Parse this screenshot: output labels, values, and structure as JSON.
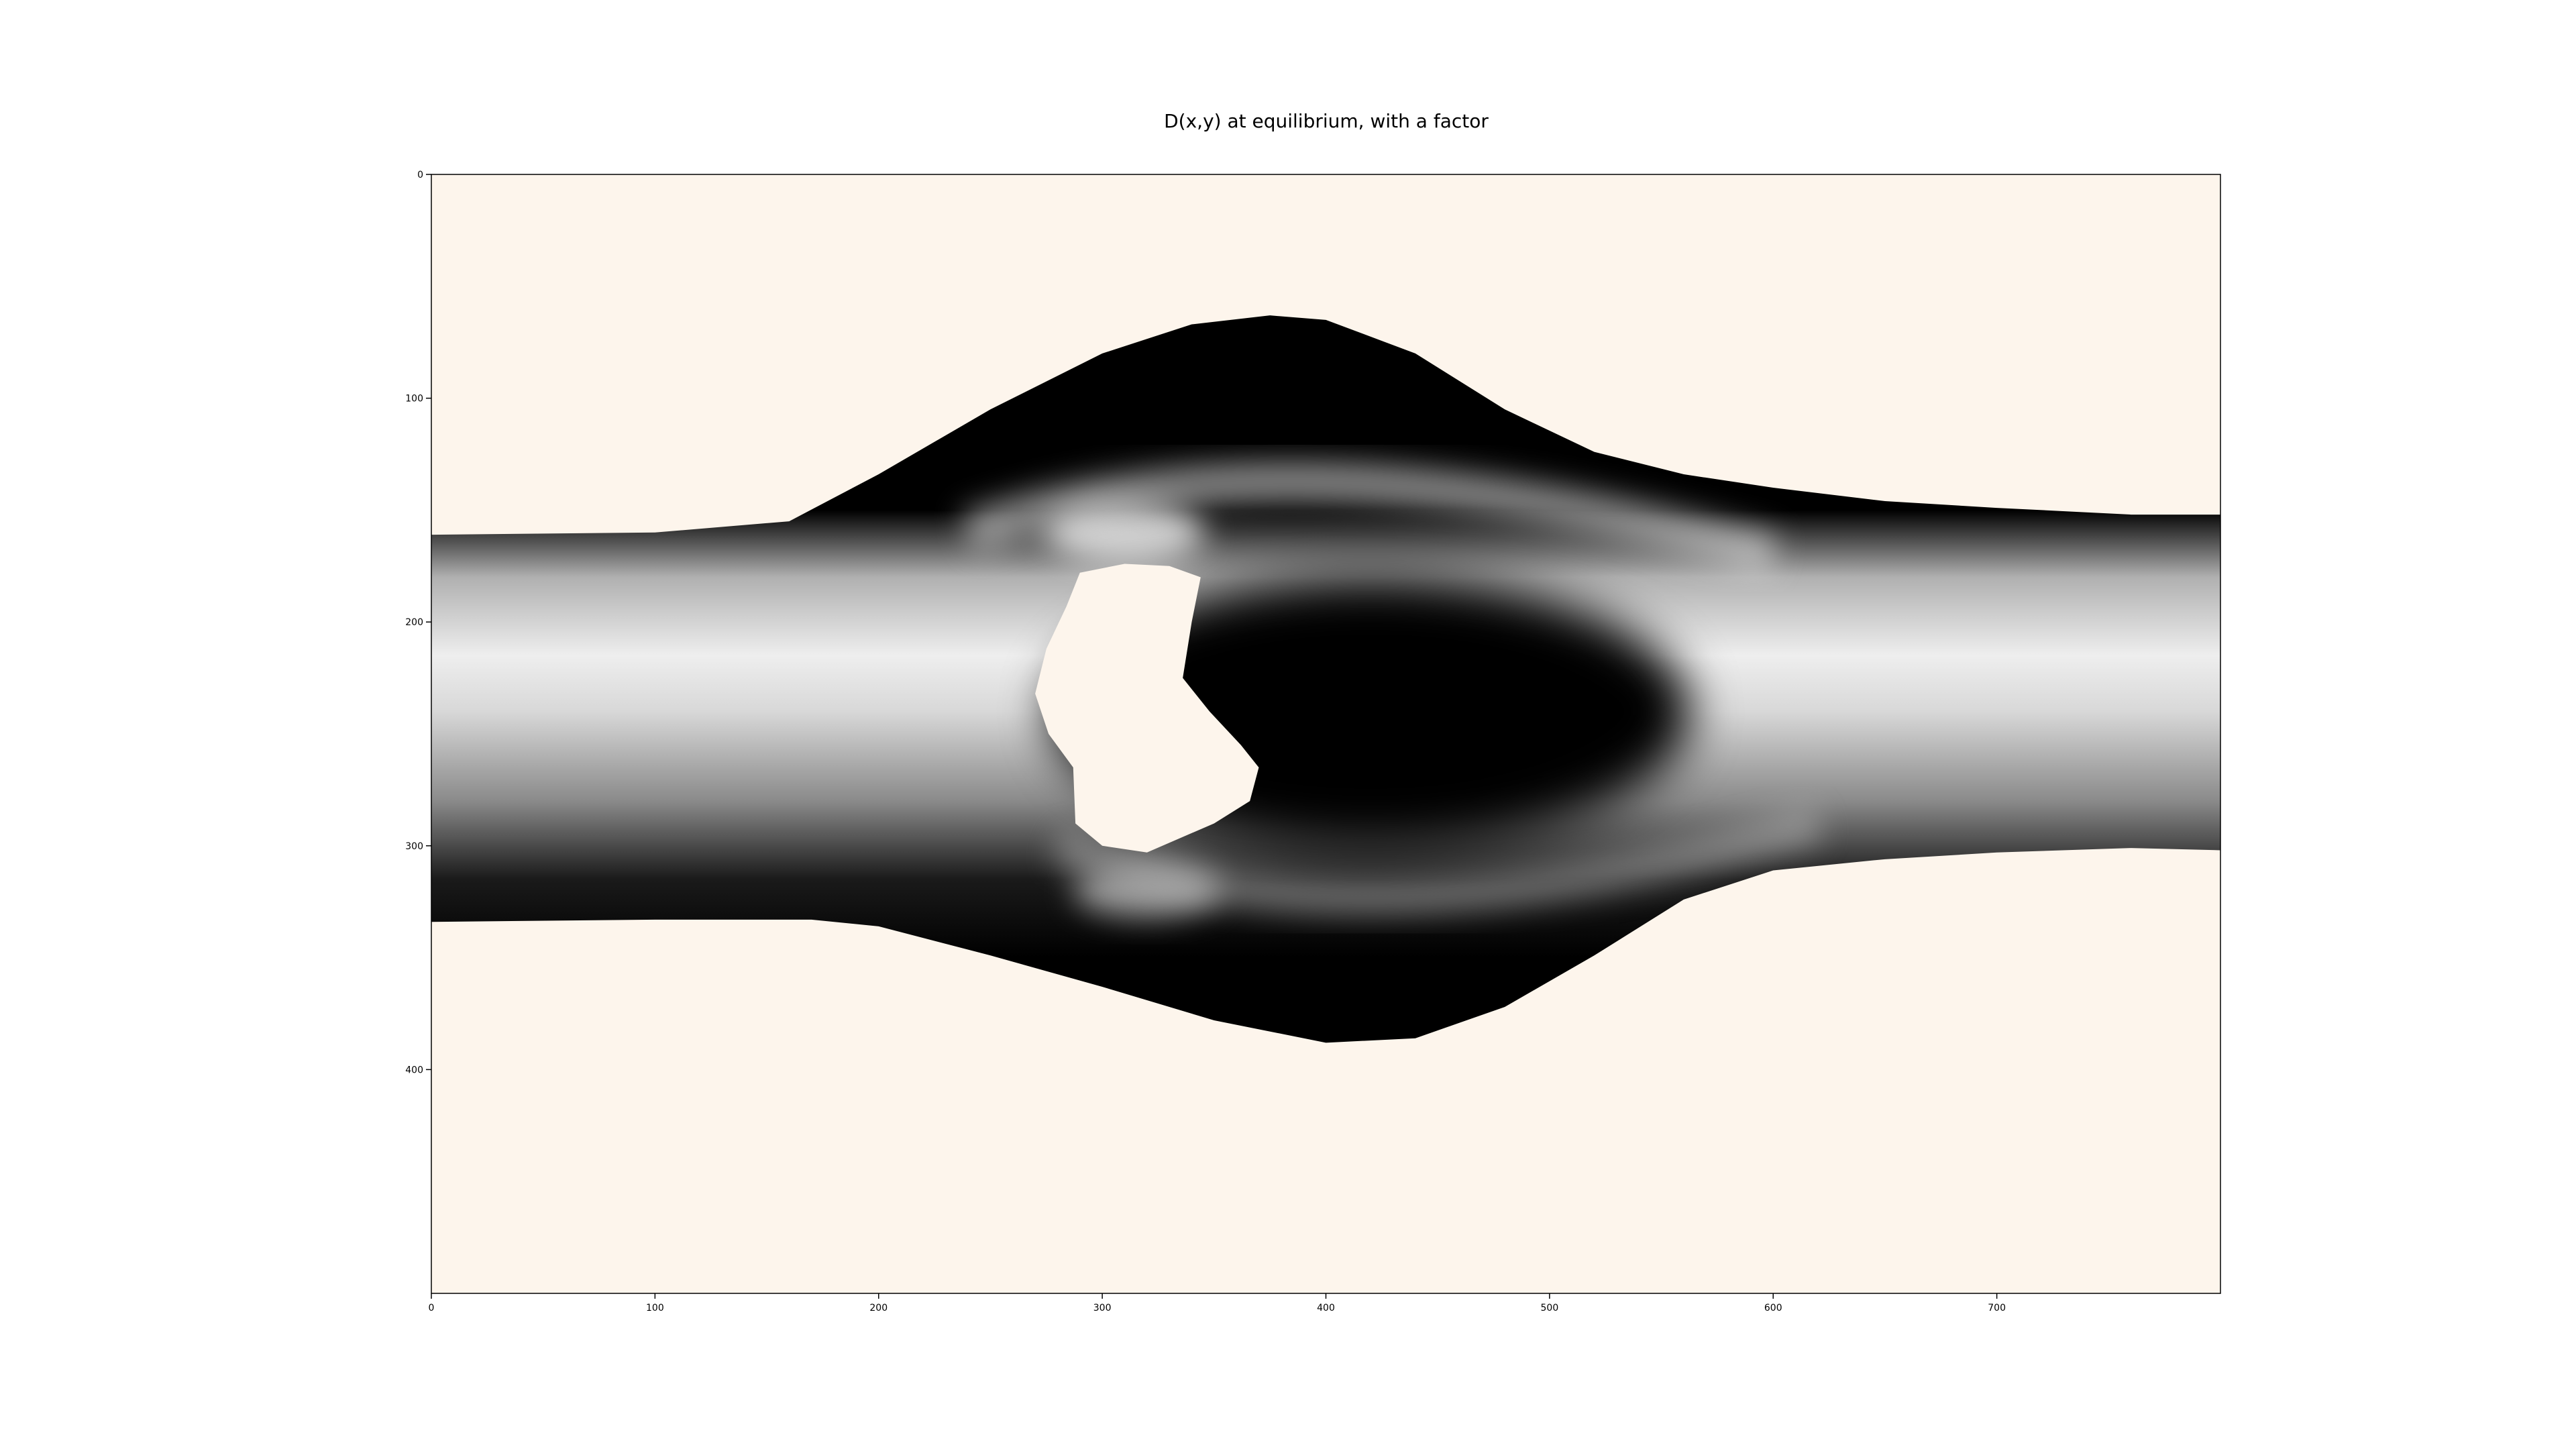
{
  "chart_data": {
    "type": "heatmap",
    "title": "D(x,y) at equilibrium, with a factor",
    "xlabel": "",
    "ylabel": "",
    "xlim": [
      0,
      800
    ],
    "ylim": [
      500,
      0
    ],
    "x_ticks": [
      "0",
      "100",
      "200",
      "300",
      "400",
      "500",
      "600",
      "700"
    ],
    "y_ticks": [
      "0",
      "100",
      "200",
      "300",
      "400"
    ],
    "colormap": "grayscale (black = low, white = high)",
    "background_color": "#fdf5ec",
    "grid": false,
    "legend": "none",
    "channel": {
      "description": "flow region around an obstacle; values from black (low) to white (high)",
      "top_boundary": [
        [
          0,
          161
        ],
        [
          100,
          160
        ],
        [
          160,
          155
        ],
        [
          200,
          134
        ],
        [
          250,
          105
        ],
        [
          300,
          80
        ],
        [
          340,
          67
        ],
        [
          375,
          63
        ],
        [
          400,
          65
        ],
        [
          440,
          80
        ],
        [
          480,
          105
        ],
        [
          520,
          124
        ],
        [
          560,
          134
        ],
        [
          600,
          140
        ],
        [
          650,
          146
        ],
        [
          700,
          149
        ],
        [
          760,
          152
        ],
        [
          800,
          152
        ]
      ],
      "bottom_boundary": [
        [
          0,
          334
        ],
        [
          100,
          333
        ],
        [
          170,
          333
        ],
        [
          200,
          336
        ],
        [
          250,
          349
        ],
        [
          300,
          363
        ],
        [
          350,
          378
        ],
        [
          400,
          388
        ],
        [
          440,
          386
        ],
        [
          480,
          372
        ],
        [
          520,
          349
        ],
        [
          560,
          324
        ],
        [
          600,
          311
        ],
        [
          650,
          306
        ],
        [
          700,
          303
        ],
        [
          760,
          301
        ],
        [
          800,
          302
        ]
      ]
    },
    "obstacle": {
      "description": "white heart-shaped obstacle inside the flow",
      "outline": [
        [
          290,
          178
        ],
        [
          310,
          174
        ],
        [
          330,
          175
        ],
        [
          344,
          180
        ],
        [
          340,
          200
        ],
        [
          336,
          225
        ],
        [
          348,
          240
        ],
        [
          362,
          255
        ],
        [
          370,
          265
        ],
        [
          366,
          280
        ],
        [
          350,
          290
        ],
        [
          320,
          303
        ],
        [
          300,
          300
        ],
        [
          288,
          290
        ],
        [
          287,
          265
        ],
        [
          276,
          250
        ],
        [
          270,
          232
        ],
        [
          275,
          212
        ],
        [
          284,
          193
        ]
      ]
    }
  }
}
